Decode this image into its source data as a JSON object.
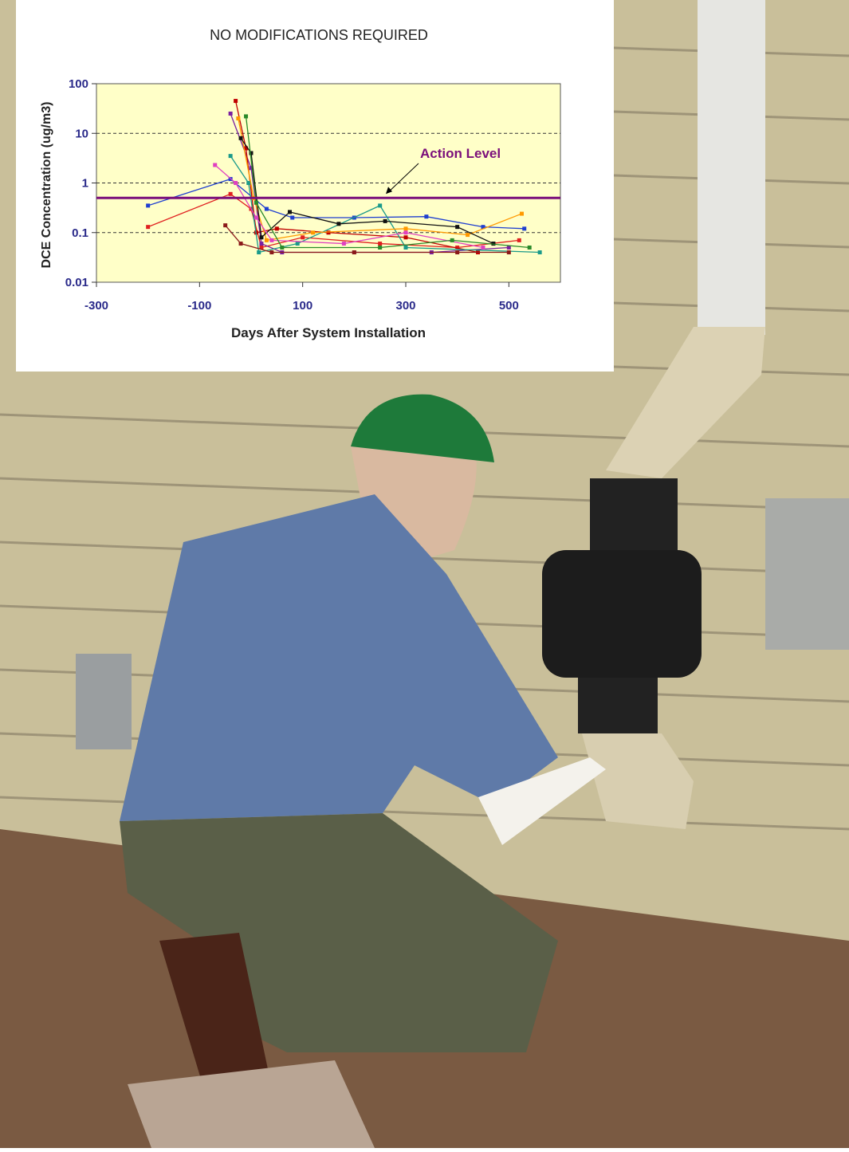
{
  "chart_data": {
    "type": "line",
    "title": "NO MODIFICATIONS REQUIRED",
    "x_label": "Days After System Installation",
    "y_label": "DCE Concentration (ug/m3)",
    "xlim": [
      -300,
      600
    ],
    "xticks": [
      -300,
      -100,
      100,
      300,
      500
    ],
    "ylim": [
      0.01,
      100
    ],
    "yticks": [
      0.01,
      0.1,
      1,
      10,
      100
    ],
    "yscale": "log",
    "grid": true,
    "reference_line": {
      "label": "Action Level",
      "value": 0.5,
      "color": "#7b0f7b"
    },
    "series": [
      {
        "color": "#1f3fd0",
        "x": [
          -200,
          -40,
          30,
          80,
          200,
          340,
          450,
          530
        ],
        "values": [
          0.35,
          1.2,
          0.3,
          0.2,
          0.2,
          0.21,
          0.13,
          0.12
        ]
      },
      {
        "color": "#e02020",
        "x": [
          -200,
          -40,
          0,
          20,
          100,
          250,
          400,
          520
        ],
        "values": [
          0.13,
          0.6,
          0.3,
          0.05,
          0.08,
          0.06,
          0.05,
          0.07
        ]
      },
      {
        "color": "#7a1fa0",
        "x": [
          -40,
          0,
          20,
          60,
          200,
          350,
          500
        ],
        "values": [
          25,
          2,
          0.06,
          0.04,
          0.04,
          0.04,
          0.05
        ]
      },
      {
        "color": "#c00000",
        "x": [
          -30,
          -10,
          10,
          50,
          150,
          300,
          440
        ],
        "values": [
          45,
          5,
          0.1,
          0.12,
          0.1,
          0.08,
          0.04
        ]
      },
      {
        "color": "#1a9a8a",
        "x": [
          -40,
          -5,
          15,
          90,
          250,
          300,
          560
        ],
        "values": [
          3.5,
          1,
          0.04,
          0.06,
          0.35,
          0.05,
          0.04
        ]
      },
      {
        "color": "#ff9900",
        "x": [
          -25,
          5,
          30,
          120,
          300,
          420,
          525
        ],
        "values": [
          20,
          0.5,
          0.07,
          0.1,
          0.12,
          0.09,
          0.24
        ]
      },
      {
        "color": "#111111",
        "x": [
          -20,
          0,
          20,
          75,
          170,
          260,
          400,
          470
        ],
        "values": [
          8,
          4,
          0.08,
          0.26,
          0.15,
          0.17,
          0.13,
          0.06
        ]
      },
      {
        "color": "#e040c0",
        "x": [
          -70,
          -30,
          10,
          40,
          180,
          300,
          450
        ],
        "values": [
          2.3,
          1,
          0.2,
          0.07,
          0.06,
          0.1,
          0.05
        ]
      },
      {
        "color": "#8b1a1a",
        "x": [
          -50,
          -20,
          40,
          200,
          400,
          500
        ],
        "values": [
          0.14,
          0.06,
          0.04,
          0.04,
          0.04,
          0.04
        ]
      },
      {
        "color": "#2a8a2a",
        "x": [
          -10,
          10,
          60,
          250,
          390,
          540
        ],
        "values": [
          22,
          0.4,
          0.05,
          0.05,
          0.07,
          0.05
        ]
      }
    ]
  }
}
